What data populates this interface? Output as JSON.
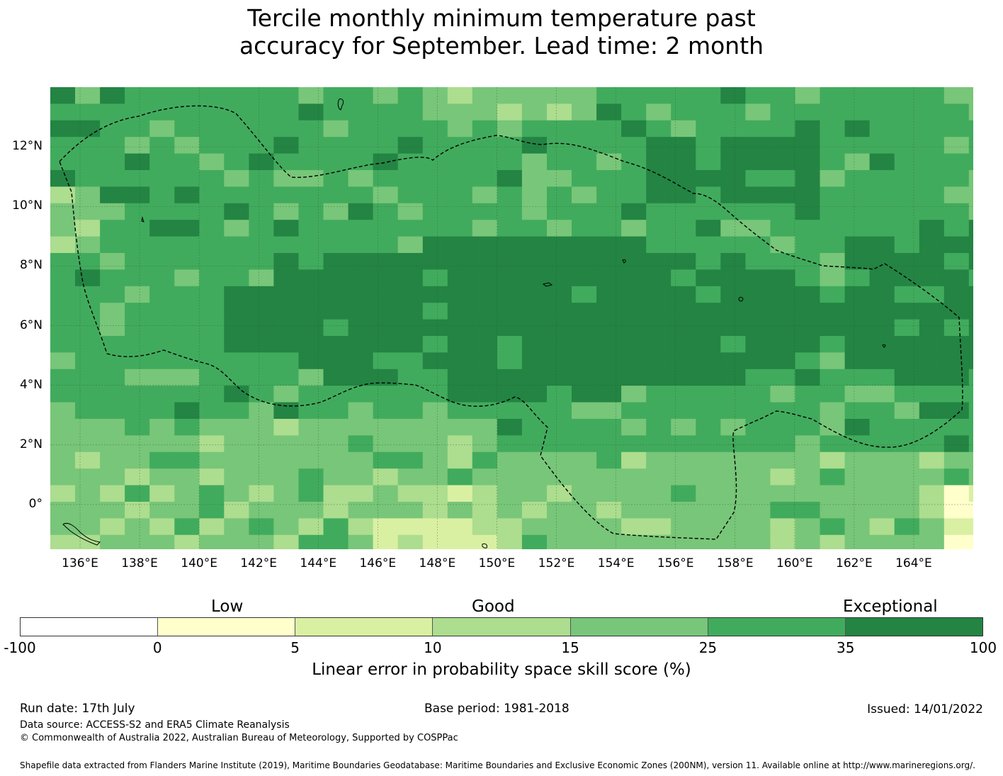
{
  "title_line1": "Tercile monthly minimum temperature past",
  "title_line2": "accuracy for September. Lead time: 2 month",
  "map": {
    "lon_labels": [
      "136°E",
      "138°E",
      "140°E",
      "142°E",
      "144°E",
      "146°E",
      "148°E",
      "150°E",
      "152°E",
      "154°E",
      "156°E",
      "158°E",
      "160°E",
      "162°E",
      "164°E"
    ],
    "lat_labels": [
      "12°N",
      "10°N",
      "8°N",
      "6°N",
      "4°N",
      "2°N",
      "0°"
    ],
    "extent": {
      "lon_min": 135.0,
      "lon_max": 166.0,
      "lat_min": -1.5,
      "lat_max": 14.0
    },
    "grid_cell_deg": 0.833,
    "colors": {
      "c0": "#ffffff",
      "c1": "#ffffcc",
      "c2": "#d9f0a3",
      "c3": "#addd8e",
      "c4": "#78c679",
      "c5": "#41ab5d",
      "c6": "#238443"
    }
  },
  "colorbar": {
    "categories": [
      "Low",
      "Good",
      "Exceptional"
    ],
    "ticks": [
      "-100",
      "0",
      "5",
      "10",
      "15",
      "25",
      "35",
      "100"
    ],
    "colors": [
      "#ffffff",
      "#ffffcc",
      "#d9f0a3",
      "#addd8e",
      "#78c679",
      "#41ab5d",
      "#238443"
    ],
    "label": "Linear error in probability space skill score (%)"
  },
  "footer": {
    "run_date": "Run date: 17th July",
    "base_period": "Base period: 1981-2018",
    "issued": "Issued: 14/01/2022",
    "data_source": "Data source: ACCESS-S2 and ERA5 Climate Reanalysis",
    "copyright": "© Commonwealth of Australia 2022, Australian Bureau of Meteorology, Supported by COSPPac",
    "shapefile": "Shapefile data extracted from Flanders Marine Institute (2019), Maritime Boundaries Geodatabase: Maritime Boundaries and Exclusive Economic Zones (200NM), version 11. Available online at http://www.marineregions.org/."
  }
}
